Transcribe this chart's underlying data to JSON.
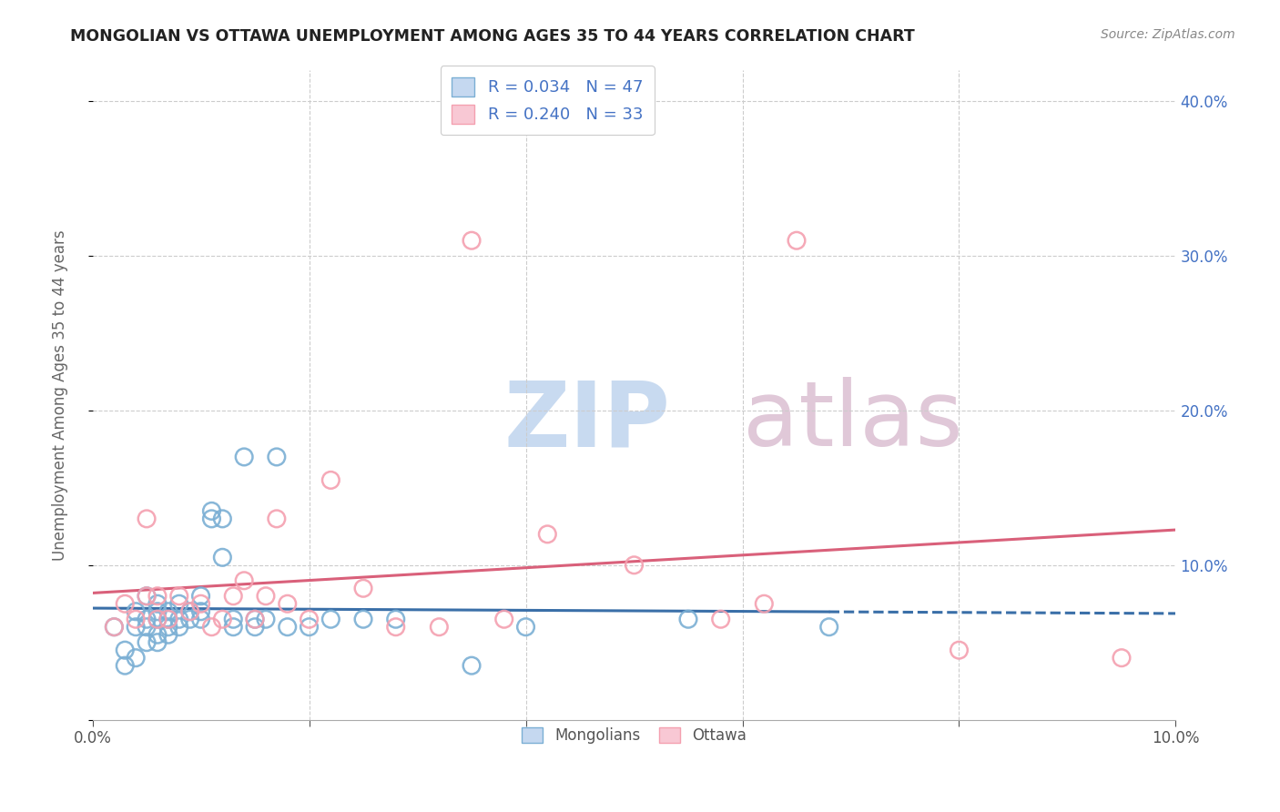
{
  "title": "MONGOLIAN VS OTTAWA UNEMPLOYMENT AMONG AGES 35 TO 44 YEARS CORRELATION CHART",
  "source": "Source: ZipAtlas.com",
  "ylabel": "Unemployment Among Ages 35 to 44 years",
  "xlim": [
    0.0,
    0.1
  ],
  "ylim": [
    0.0,
    0.42
  ],
  "mongolian_color": "#7bafd4",
  "mongolian_line_color": "#3a6fa8",
  "ottawa_color": "#f4a0b0",
  "ottawa_line_color": "#d9607a",
  "mongolian_R": 0.034,
  "mongolian_N": 47,
  "ottawa_R": 0.24,
  "ottawa_N": 33,
  "watermark_zip_color": "#c8d8ed",
  "watermark_atlas_color": "#d8c8d8",
  "mongolian_x": [
    0.002,
    0.003,
    0.003,
    0.004,
    0.004,
    0.004,
    0.005,
    0.005,
    0.005,
    0.005,
    0.006,
    0.006,
    0.006,
    0.006,
    0.006,
    0.007,
    0.007,
    0.007,
    0.007,
    0.008,
    0.008,
    0.008,
    0.009,
    0.009,
    0.01,
    0.01,
    0.01,
    0.011,
    0.011,
    0.012,
    0.012,
    0.013,
    0.013,
    0.014,
    0.015,
    0.015,
    0.016,
    0.017,
    0.018,
    0.02,
    0.022,
    0.025,
    0.028,
    0.035,
    0.04,
    0.055,
    0.068
  ],
  "mongolian_y": [
    0.06,
    0.035,
    0.045,
    0.04,
    0.06,
    0.07,
    0.05,
    0.06,
    0.065,
    0.08,
    0.05,
    0.055,
    0.065,
    0.07,
    0.075,
    0.055,
    0.06,
    0.065,
    0.07,
    0.06,
    0.065,
    0.075,
    0.065,
    0.07,
    0.065,
    0.07,
    0.08,
    0.13,
    0.135,
    0.105,
    0.13,
    0.06,
    0.065,
    0.17,
    0.06,
    0.065,
    0.065,
    0.17,
    0.06,
    0.06,
    0.065,
    0.065,
    0.065,
    0.035,
    0.06,
    0.065,
    0.06
  ],
  "ottawa_x": [
    0.002,
    0.003,
    0.004,
    0.005,
    0.005,
    0.006,
    0.006,
    0.007,
    0.008,
    0.009,
    0.01,
    0.011,
    0.012,
    0.013,
    0.014,
    0.015,
    0.016,
    0.017,
    0.018,
    0.02,
    0.022,
    0.025,
    0.028,
    0.032,
    0.035,
    0.038,
    0.042,
    0.05,
    0.058,
    0.062,
    0.065,
    0.08,
    0.095
  ],
  "ottawa_y": [
    0.06,
    0.075,
    0.065,
    0.08,
    0.13,
    0.065,
    0.08,
    0.065,
    0.08,
    0.07,
    0.075,
    0.06,
    0.065,
    0.08,
    0.09,
    0.065,
    0.08,
    0.13,
    0.075,
    0.065,
    0.155,
    0.085,
    0.06,
    0.06,
    0.31,
    0.065,
    0.12,
    0.1,
    0.065,
    0.075,
    0.31,
    0.045,
    0.04
  ]
}
